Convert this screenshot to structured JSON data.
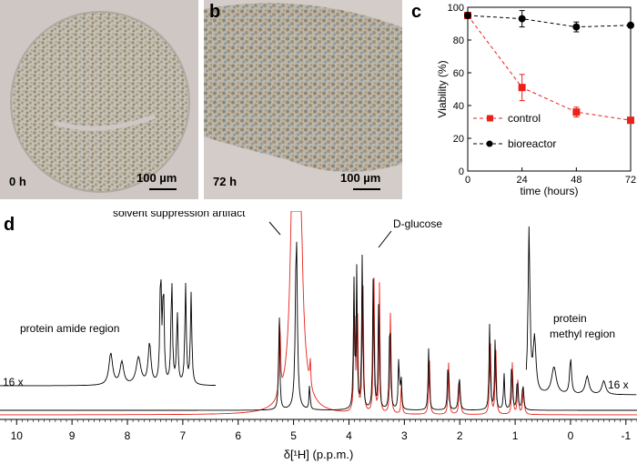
{
  "panels": {
    "a": {
      "letter": "a",
      "time": "0 h",
      "scale": "100 µm"
    },
    "b": {
      "letter": "b",
      "time": "72 h",
      "scale": "100 µm"
    },
    "c": {
      "letter": "c"
    },
    "d": {
      "letter": "d"
    }
  },
  "chart_data": [
    {
      "id": "c",
      "type": "line",
      "xlabel": "time (hours)",
      "ylabel": "Viability (%)",
      "xlim": [
        0,
        72
      ],
      "ylim": [
        0,
        100
      ],
      "xticks": [
        0,
        24,
        48,
        72
      ],
      "yticks": [
        0,
        20,
        40,
        60,
        80,
        100
      ],
      "legend_position": "bottom-left",
      "series": [
        {
          "name": "control",
          "color": "#e8221b",
          "marker": "square",
          "x": [
            0,
            24,
            48,
            72
          ],
          "y": [
            95,
            51,
            36,
            31
          ],
          "err": [
            1,
            8,
            3,
            1.5
          ]
        },
        {
          "name": "bioreactor",
          "color": "#000000",
          "marker": "circle",
          "x": [
            0,
            24,
            48,
            72
          ],
          "y": [
            95,
            93,
            88,
            89
          ],
          "err": [
            1,
            5,
            3,
            1
          ]
        }
      ]
    },
    {
      "id": "d",
      "type": "line",
      "xlabel": "δ[¹H] (p.p.m.)",
      "xlim": [
        10.3,
        -1.2
      ],
      "xticks": [
        10,
        9,
        8,
        7,
        6,
        5,
        4,
        3,
        2,
        1,
        0,
        -1
      ],
      "series": [
        {
          "name": "bioreactor",
          "color": "#000000"
        },
        {
          "name": "control",
          "color": "#e8221b"
        }
      ],
      "annotations": {
        "solvent": "solvent suppression artifact",
        "glucose": "D-glucose",
        "amide": "protein amide region",
        "methyl1": "protein",
        "methyl2": "methyl region",
        "zoom_left": "16 x",
        "zoom_right": "16 x"
      }
    }
  ]
}
